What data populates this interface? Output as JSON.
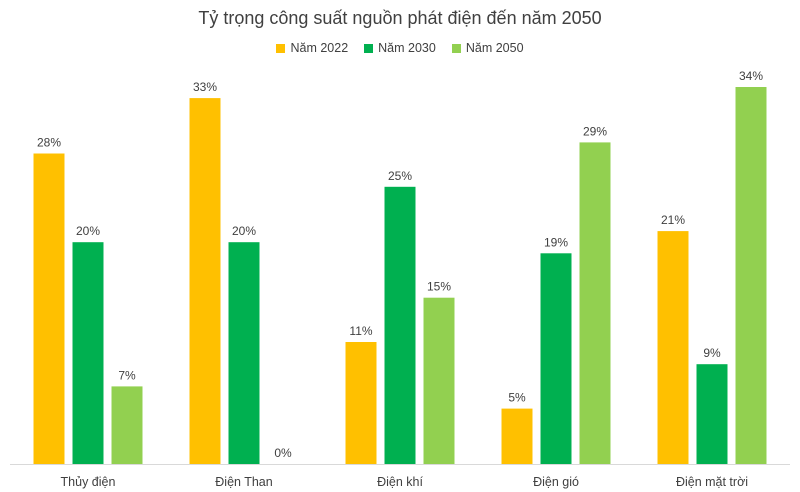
{
  "chart_data": {
    "type": "bar",
    "title": "Tỷ trọng công suất nguồn phát điện đến năm 2050",
    "categories": [
      "Thủy điện",
      "Điện Than",
      "Điện khí",
      "Điện gió",
      "Điện mặt trời"
    ],
    "series": [
      {
        "name": "Năm 2022",
        "color": "#FFC000",
        "values": [
          28,
          33,
          11,
          5,
          21
        ],
        "labels": [
          "28%",
          "33%",
          "11%",
          "5%",
          "21%"
        ]
      },
      {
        "name": "Năm 2030",
        "color": "#00B050",
        "values": [
          20,
          20,
          25,
          19,
          9
        ],
        "labels": [
          "20%",
          "20%",
          "25%",
          "19%",
          "9%"
        ]
      },
      {
        "name": "Năm 2050",
        "color": "#92D050",
        "values": [
          7,
          0,
          15,
          29,
          34
        ],
        "labels": [
          "7%",
          "0%",
          "15%",
          "29%",
          "34%"
        ]
      }
    ],
    "ylim": [
      0,
      35
    ],
    "grid": false,
    "legend_position": "top-center"
  }
}
